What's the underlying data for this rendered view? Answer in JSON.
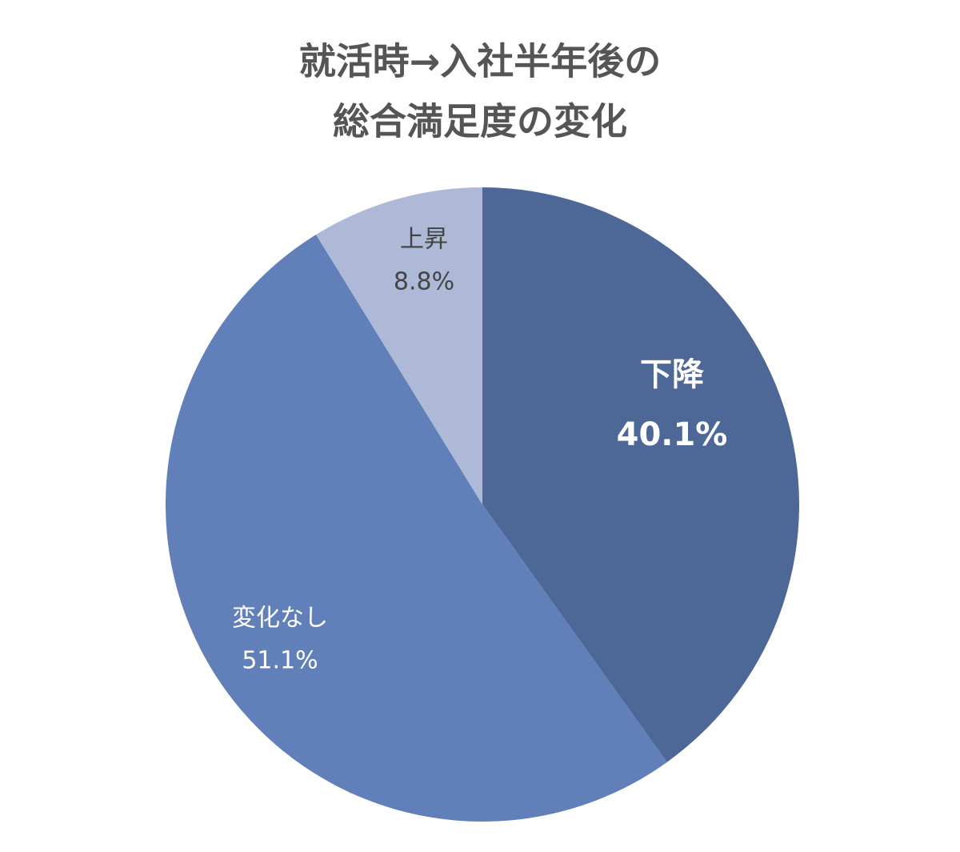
{
  "chart_data": {
    "type": "pie",
    "title": [
      "就活時→入社半年後の",
      "総合満足度の変化"
    ],
    "categories": [
      "下降",
      "変化なし",
      "上昇"
    ],
    "values": [
      40.1,
      51.1,
      8.8
    ],
    "value_labels": [
      "40.1%",
      "51.1%",
      "8.8%"
    ],
    "colors": [
      "#4d6797",
      "#6180b9",
      "#adb9d6"
    ]
  }
}
